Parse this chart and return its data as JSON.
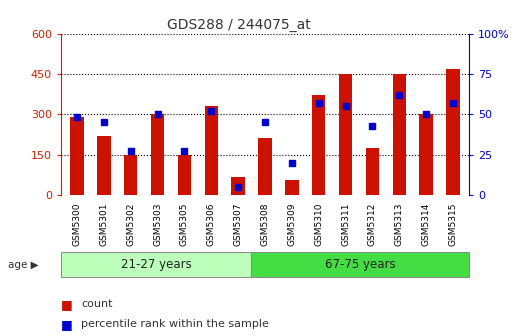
{
  "title": "GDS288 / 244075_at",
  "categories": [
    "GSM5300",
    "GSM5301",
    "GSM5302",
    "GSM5303",
    "GSM5305",
    "GSM5306",
    "GSM5307",
    "GSM5308",
    "GSM5309",
    "GSM5310",
    "GSM5311",
    "GSM5312",
    "GSM5313",
    "GSM5314",
    "GSM5315"
  ],
  "counts": [
    290,
    220,
    150,
    300,
    150,
    330,
    65,
    210,
    55,
    370,
    450,
    175,
    450,
    300,
    470
  ],
  "percentiles": [
    48,
    45,
    27,
    50,
    27,
    52,
    5,
    45,
    20,
    57,
    55,
    43,
    62,
    50,
    57
  ],
  "group1_label": "21-27 years",
  "group2_label": "67-75 years",
  "group1_count": 7,
  "ylim_left": [
    0,
    600
  ],
  "ylim_right": [
    0,
    100
  ],
  "yticks_left": [
    0,
    150,
    300,
    450,
    600
  ],
  "yticks_right": [
    0,
    25,
    50,
    75,
    100
  ],
  "bar_color": "#cc1100",
  "dot_color": "#0000cc",
  "group1_bg": "#bbffbb",
  "group2_bg": "#44dd44",
  "left_tick_color": "#cc2200",
  "right_tick_color": "#0000cc",
  "title_color": "#333333"
}
